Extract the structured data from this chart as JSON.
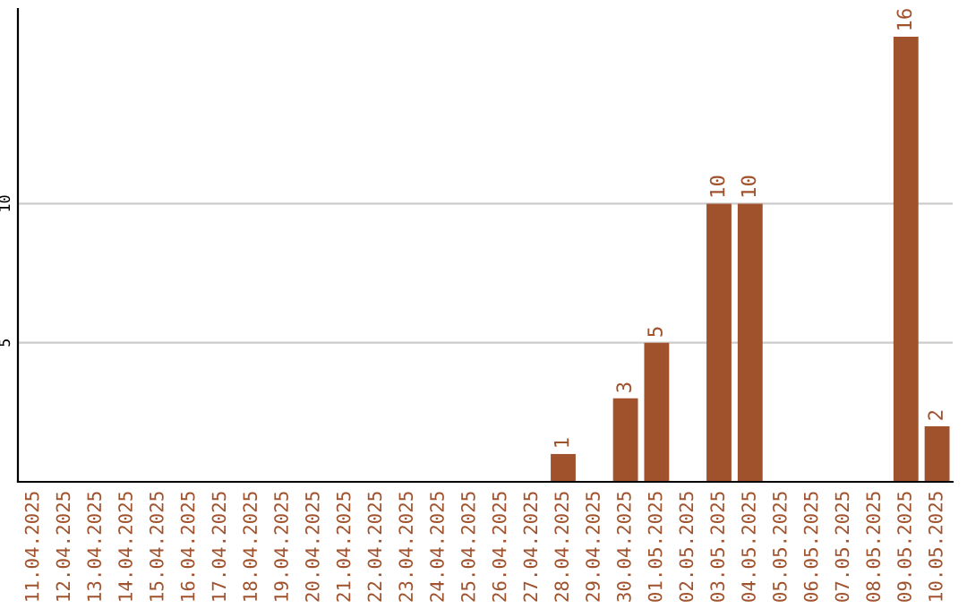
{
  "chart_data": {
    "type": "bar",
    "categories": [
      "11.04.2025",
      "12.04.2025",
      "13.04.2025",
      "14.04.2025",
      "15.04.2025",
      "16.04.2025",
      "17.04.2025",
      "18.04.2025",
      "19.04.2025",
      "20.04.2025",
      "21.04.2025",
      "22.04.2025",
      "23.04.2025",
      "24.04.2025",
      "25.04.2025",
      "26.04.2025",
      "27.04.2025",
      "28.04.2025",
      "29.04.2025",
      "30.04.2025",
      "01.05.2025",
      "02.05.2025",
      "03.05.2025",
      "04.05.2025",
      "05.05.2025",
      "06.05.2025",
      "07.05.2025",
      "08.05.2025",
      "09.05.2025",
      "10.05.2025"
    ],
    "values": [
      0,
      0,
      0,
      0,
      0,
      0,
      0,
      0,
      0,
      0,
      0,
      0,
      0,
      0,
      0,
      0,
      0,
      1,
      0,
      3,
      5,
      0,
      10,
      10,
      0,
      0,
      0,
      0,
      16,
      2
    ],
    "color": "#a0522d",
    "value_labels": [
      null,
      null,
      null,
      null,
      null,
      null,
      null,
      null,
      null,
      null,
      null,
      null,
      null,
      null,
      null,
      null,
      null,
      "1",
      null,
      "3",
      "5",
      null,
      "10",
      "10",
      null,
      null,
      null,
      null,
      "16",
      "2"
    ],
    "ylim": [
      0,
      17
    ],
    "yticks": [
      5,
      10
    ],
    "grid": "y"
  }
}
